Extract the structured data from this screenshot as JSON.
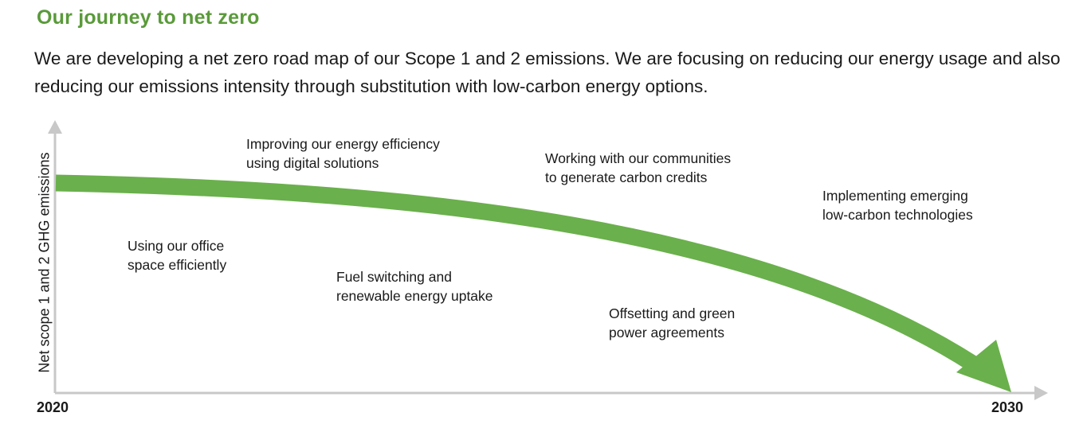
{
  "title": "Our journey to net zero",
  "intro": "We are developing a net zero road map of our Scope 1 and 2 emissions. We are focusing on reducing our energy usage and also reducing our emissions intensity through substitution with low-carbon energy options.",
  "axis": {
    "y_label": "Net scope 1 and 2 GHG emissions",
    "x_start": "2020",
    "x_end": "2030"
  },
  "steps": [
    {
      "line1": "Using our office",
      "line2": "space efficiently"
    },
    {
      "line1": "Improving our energy efficiency",
      "line2": "using digital solutions"
    },
    {
      "line1": "Fuel switching and",
      "line2": "renewable energy uptake"
    },
    {
      "line1": "Working with our communities",
      "line2": "to generate carbon credits"
    },
    {
      "line1": "Offsetting and green",
      "line2": "power agreements"
    },
    {
      "line1": "Implementing emerging",
      "line2": "low-carbon technologies"
    }
  ],
  "colors": {
    "accent_green": "#5a9a3a",
    "arrow_green": "#6ab04c",
    "axis_gray": "#c8c8c8"
  }
}
